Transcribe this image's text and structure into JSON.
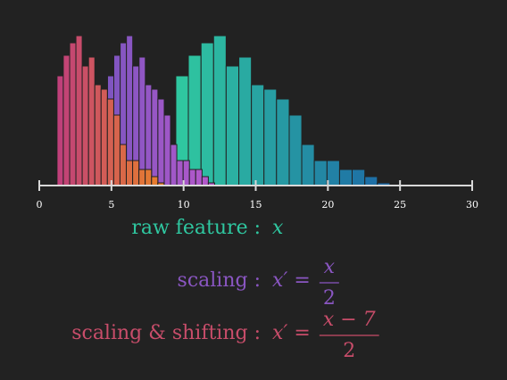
{
  "chart_data": {
    "type": "histogram",
    "xlim": [
      0,
      30
    ],
    "xticks": [
      0,
      5,
      10,
      15,
      20,
      25,
      30
    ],
    "ylim": [
      0,
      180
    ],
    "series": [
      {
        "label": "raw feature :",
        "formula": {
          "lhs": "x"
        },
        "gradient": [
          "#2fc7a0",
          "#1d6aa6"
        ],
        "bins": [
          9.46,
          10.33,
          11.21,
          12.08,
          12.95,
          13.83,
          14.7,
          15.57,
          16.44,
          17.32,
          18.19,
          19.06,
          19.94,
          20.81,
          21.68,
          22.56,
          23.43,
          24.3
        ],
        "values": [
          123,
          146,
          160,
          168,
          134,
          144,
          113,
          108,
          97,
          79,
          46,
          28,
          28,
          18,
          18,
          10,
          3
        ]
      },
      {
        "label": "scaling :",
        "formula": {
          "lhs": "x′ =",
          "numerator": "x",
          "denominator": "2"
        },
        "gradient": [
          "#7f55c0",
          "#b659cc"
        ],
        "bins": [
          4.73,
          5.165,
          5.605,
          6.04,
          6.475,
          6.915,
          7.35,
          7.785,
          8.22,
          8.66,
          9.095,
          9.53,
          9.97,
          10.405,
          10.84,
          11.28,
          11.715,
          12.15
        ],
        "values": [
          123,
          146,
          160,
          168,
          134,
          144,
          113,
          108,
          97,
          79,
          46,
          28,
          28,
          18,
          18,
          10,
          3
        ]
      },
      {
        "label": "scaling & shifting :",
        "formula": {
          "lhs": "x′ =",
          "numerator": "x − 7",
          "denominator": "2"
        },
        "gradient": [
          "#c0407a",
          "#e8802a"
        ],
        "bins": [
          1.23,
          1.665,
          2.105,
          2.54,
          2.975,
          3.415,
          3.85,
          4.285,
          4.72,
          5.16,
          5.595,
          6.03,
          6.47,
          6.905,
          7.34,
          7.78,
          8.215,
          8.65
        ],
        "values": [
          123,
          146,
          160,
          168,
          134,
          144,
          113,
          108,
          97,
          79,
          46,
          28,
          28,
          18,
          18,
          10,
          3
        ]
      }
    ]
  }
}
